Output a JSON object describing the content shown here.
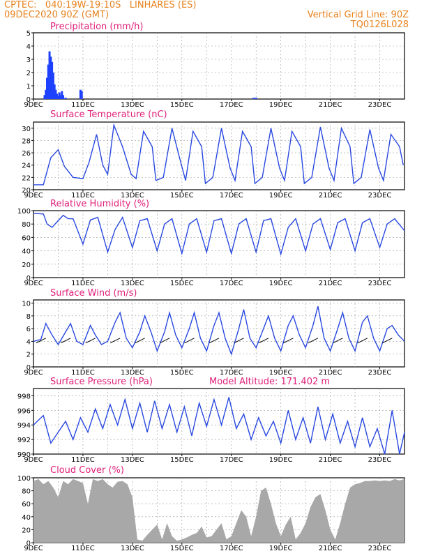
{
  "header": {
    "line1_left": "CPTEC:   040:19W-19:10S   LINHARES (ES)",
    "line2_left": "09DEC2020 90Z (GMT)",
    "line1_right": "Vertical Grid Line: 90Z",
    "line2_right": "TQ0126L028"
  },
  "x_ticks": [
    "9DEC",
    "11DEC",
    "13DEC",
    "15DEC",
    "17DEC",
    "19DEC",
    "21DEC",
    "23DEC"
  ],
  "colors": {
    "title": "#e0207a",
    "header": "#e8821e",
    "line": "#2848e0",
    "bar": "#1e40ff",
    "cloud": "#a8a8a8"
  },
  "chart_data": [
    {
      "type": "bar",
      "title": "Precipitation (mm/h)",
      "ylim": [
        0,
        5
      ],
      "yticks": [
        0,
        1,
        2,
        3,
        4,
        5
      ],
      "x": [
        0.45,
        0.5,
        0.55,
        0.6,
        0.65,
        0.7,
        0.75,
        0.8,
        0.85,
        0.9,
        0.95,
        1.0,
        1.05,
        1.1,
        1.15,
        1.2,
        1.3,
        1.9,
        1.95,
        8.9,
        9.0
      ],
      "values": [
        0.3,
        0.7,
        1.6,
        2.6,
        3.6,
        3.2,
        2.8,
        2.0,
        1.1,
        0.7,
        0.4,
        0.2,
        0.5,
        0.3,
        0.6,
        0.3,
        0.1,
        0.7,
        0.6,
        0.1,
        0.1
      ]
    },
    {
      "type": "line",
      "title": "Surface Temperature (nC)",
      "ylim": [
        20,
        31
      ],
      "yticks": [
        20,
        22,
        24,
        26,
        28,
        30
      ],
      "x": [
        0,
        0.4,
        0.7,
        1.0,
        1.25,
        1.6,
        2.0,
        2.25,
        2.55,
        2.8,
        3.0,
        3.25,
        3.6,
        3.95,
        4.15,
        4.45,
        4.8,
        4.95,
        5.25,
        5.6,
        5.95,
        6.15,
        6.45,
        6.8,
        6.95,
        7.25,
        7.6,
        7.95,
        8.15,
        8.45,
        8.8,
        8.95,
        9.25,
        9.6,
        9.95,
        10.15,
        10.45,
        10.8,
        10.95,
        11.25,
        11.6,
        11.95,
        12.15,
        12.45,
        12.8,
        12.95,
        13.25,
        13.6,
        13.95,
        14.15,
        14.45,
        14.8,
        14.95
      ],
      "values": [
        20.8,
        20.8,
        25.2,
        26.5,
        23.8,
        22.0,
        21.8,
        24.5,
        29.0,
        24.0,
        22.5,
        30.5,
        27.0,
        22.5,
        21.8,
        29.5,
        27.0,
        21.5,
        22.0,
        30.0,
        24.5,
        21.5,
        29.5,
        27.0,
        21.0,
        22.0,
        30.0,
        23.5,
        21.5,
        29.5,
        27.0,
        21.0,
        22.0,
        30.0,
        23.5,
        21.5,
        29.5,
        27.0,
        21.0,
        22.0,
        30.2,
        23.5,
        21.5,
        30.0,
        27.0,
        21.0,
        22.0,
        29.8,
        23.5,
        21.5,
        29.0,
        27.0,
        24.0
      ]
    },
    {
      "type": "line",
      "title": "Relative Humidity (%)",
      "ylim": [
        0,
        100
      ],
      "yticks": [
        0,
        20,
        40,
        60,
        80,
        100
      ],
      "x": [
        0,
        0.4,
        0.55,
        0.75,
        1.2,
        1.4,
        1.6,
        2.0,
        2.3,
        2.6,
        3.0,
        3.3,
        3.6,
        4.0,
        4.3,
        4.6,
        5.0,
        5.3,
        5.6,
        6.0,
        6.3,
        6.6,
        7.0,
        7.3,
        7.6,
        8.0,
        8.3,
        8.6,
        9.0,
        9.3,
        9.6,
        10.0,
        10.3,
        10.6,
        11.0,
        11.3,
        11.6,
        12.0,
        12.3,
        12.6,
        13.0,
        13.3,
        13.6,
        14.0,
        14.3,
        14.6,
        15.0
      ],
      "values": [
        96,
        95,
        80,
        75,
        93,
        88,
        88,
        50,
        86,
        90,
        38,
        72,
        90,
        45,
        85,
        88,
        40,
        80,
        88,
        36,
        80,
        88,
        38,
        85,
        88,
        36,
        80,
        88,
        38,
        85,
        88,
        35,
        75,
        88,
        40,
        80,
        88,
        42,
        82,
        88,
        40,
        82,
        88,
        45,
        80,
        88,
        70
      ]
    },
    {
      "type": "line",
      "title": "Surface Wind (m/s)",
      "ylim": [
        0,
        10.5
      ],
      "yticks": [
        0,
        2,
        4,
        6,
        8,
        10
      ],
      "x": [
        0,
        0.3,
        0.5,
        0.75,
        1.0,
        1.3,
        1.5,
        1.75,
        2.0,
        2.3,
        2.5,
        2.75,
        3.0,
        3.3,
        3.5,
        3.75,
        4.0,
        4.3,
        4.5,
        4.75,
        5.0,
        5.3,
        5.5,
        5.75,
        6.0,
        6.3,
        6.5,
        6.75,
        7.0,
        7.3,
        7.5,
        7.75,
        8.0,
        8.3,
        8.5,
        8.75,
        9.0,
        9.3,
        9.5,
        9.75,
        10.0,
        10.3,
        10.5,
        10.75,
        11.0,
        11.3,
        11.5,
        11.75,
        12.0,
        12.3,
        12.5,
        12.75,
        13.0,
        13.3,
        13.5,
        13.75,
        14.0,
        14.3,
        14.5,
        14.75,
        15.0
      ],
      "values": [
        4.0,
        4.3,
        6.8,
        5.0,
        3.5,
        5.5,
        6.8,
        4.0,
        3.5,
        6.5,
        5.0,
        3.5,
        4.0,
        7.0,
        8.5,
        4.5,
        3.0,
        5.5,
        8.0,
        5.5,
        2.5,
        5.5,
        8.5,
        5.0,
        3.0,
        6.0,
        8.5,
        4.5,
        2.5,
        6.5,
        8.5,
        4.5,
        2.0,
        6.0,
        9.0,
        4.5,
        3.0,
        6.0,
        8.0,
        4.5,
        2.5,
        6.5,
        8.0,
        5.0,
        3.0,
        6.5,
        9.5,
        4.5,
        2.5,
        6.0,
        8.5,
        4.5,
        2.5,
        7.0,
        8.0,
        4.5,
        2.5,
        6.0,
        6.5,
        5.0,
        4.0
      ]
    },
    {
      "type": "line",
      "title": "Surface Pressure (hPa)",
      "annotation": "Model Altitude: 171.402  m",
      "ylim": [
        990,
        999
      ],
      "yticks": [
        990,
        992,
        994,
        996,
        998
      ],
      "x": [
        0,
        0.4,
        0.7,
        1.0,
        1.3,
        1.6,
        1.9,
        2.2,
        2.5,
        2.8,
        3.1,
        3.4,
        3.7,
        4.0,
        4.3,
        4.6,
        4.9,
        5.2,
        5.5,
        5.8,
        6.1,
        6.4,
        6.7,
        7.0,
        7.3,
        7.6,
        7.9,
        8.2,
        8.5,
        8.8,
        9.1,
        9.4,
        9.7,
        10.0,
        10.3,
        10.6,
        10.9,
        11.2,
        11.5,
        11.8,
        12.1,
        12.4,
        12.7,
        13.0,
        13.3,
        13.6,
        13.9,
        14.2,
        14.5,
        14.8,
        15.0
      ],
      "values": [
        994.0,
        995.3,
        991.5,
        993.0,
        994.5,
        992.0,
        995.0,
        993.0,
        996.2,
        993.5,
        996.8,
        994.0,
        997.5,
        993.5,
        997.0,
        993.0,
        997.3,
        993.5,
        996.8,
        993.0,
        996.5,
        992.5,
        997.0,
        993.8,
        997.5,
        994.0,
        997.8,
        993.5,
        995.5,
        992.0,
        995.0,
        992.5,
        994.5,
        991.5,
        996.0,
        992.0,
        995.0,
        991.5,
        996.5,
        992.0,
        995.5,
        991.5,
        994.5,
        991.0,
        995.0,
        991.0,
        993.5,
        990.0,
        996.0,
        990.0,
        993.0
      ]
    },
    {
      "type": "area",
      "title": "Cloud Cover (%)",
      "ylim": [
        0,
        100
      ],
      "yticks": [
        0,
        20,
        40,
        60,
        80,
        100
      ],
      "x": [
        0,
        0.2,
        0.4,
        0.6,
        0.8,
        1.0,
        1.2,
        1.4,
        1.6,
        1.8,
        2.0,
        2.2,
        2.4,
        2.6,
        2.8,
        3.0,
        3.2,
        3.4,
        3.6,
        3.8,
        4.0,
        4.2,
        4.4,
        4.6,
        4.8,
        5.0,
        5.2,
        5.4,
        5.6,
        5.8,
        6.0,
        6.2,
        6.4,
        6.6,
        6.8,
        7.0,
        7.2,
        7.4,
        7.6,
        7.8,
        8.0,
        8.2,
        8.4,
        8.6,
        8.8,
        9.0,
        9.2,
        9.4,
        9.6,
        9.8,
        10.0,
        10.2,
        10.4,
        10.6,
        10.8,
        11.0,
        11.2,
        11.4,
        11.6,
        11.8,
        12.0,
        12.2,
        12.4,
        12.6,
        12.8,
        13.0,
        13.2,
        13.4,
        13.6,
        13.8,
        14.0,
        14.2,
        14.4,
        14.6,
        14.8,
        15.0
      ],
      "values": [
        95,
        98,
        90,
        95,
        85,
        70,
        95,
        90,
        98,
        95,
        92,
        60,
        98,
        95,
        98,
        90,
        85,
        94,
        95,
        90,
        70,
        5,
        3,
        12,
        20,
        28,
        5,
        30,
        10,
        3,
        5,
        8,
        12,
        15,
        25,
        8,
        10,
        20,
        30,
        5,
        10,
        30,
        50,
        40,
        10,
        40,
        80,
        85,
        60,
        30,
        10,
        28,
        40,
        5,
        15,
        30,
        55,
        70,
        75,
        50,
        20,
        5,
        30,
        60,
        85,
        90,
        92,
        95,
        95,
        96,
        95,
        96,
        95,
        98,
        96,
        98
      ]
    }
  ]
}
